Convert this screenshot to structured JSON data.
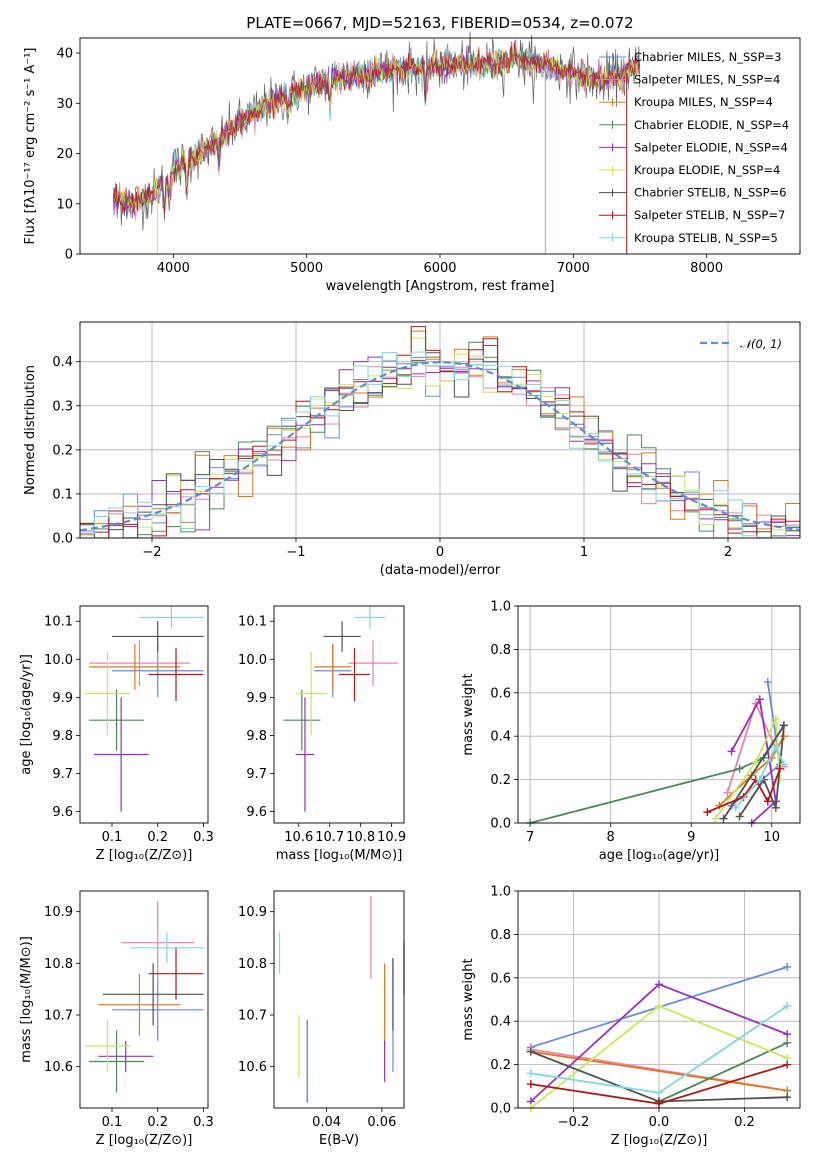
{
  "colors": [
    "#6a8adf",
    "#ee80b0",
    "#e07820",
    "#4a8a5a",
    "#9a30b8",
    "#c8e860",
    "#505050",
    "#b01818",
    "#80d8e0"
  ],
  "chart_data": [
    {
      "id": "spectrum",
      "type": "line",
      "title": "PLATE=0667, MJD=52163, FIBERID=0534, z=0.072",
      "xlabel": "wavelength [Angstrom, rest frame]",
      "ylabel": "Flux [fλ10⁻¹⁷ erg cm⁻² s⁻¹ A⁻¹]",
      "xlim": [
        3300,
        8700
      ],
      "ylim": [
        0,
        43
      ],
      "xticks": [
        4000,
        5000,
        6000,
        7000,
        8000
      ],
      "yticks": [
        0,
        10,
        20,
        30,
        40
      ],
      "grid": false,
      "legend_position": "top-right",
      "series": [
        {
          "name": "Chabrier MILES, N_SSP=3"
        },
        {
          "name": "Salpeter MILES, N_SSP=4"
        },
        {
          "name": "Kroupa MILES, N_SSP=4"
        },
        {
          "name": "Chabrier ELODIE, N_SSP=4"
        },
        {
          "name": "Salpeter ELODIE, N_SSP=4"
        },
        {
          "name": "Kroupa ELODIE, N_SSP=4"
        },
        {
          "name": "Chabrier STELIB, N_SSP=6"
        },
        {
          "name": "Salpeter STELIB, N_SSP=7"
        },
        {
          "name": "Kroupa STELIB, N_SSP=5"
        }
      ],
      "continuum": {
        "x": [
          3550,
          3700,
          3850,
          4000,
          4200,
          4400,
          4600,
          4800,
          5000,
          5200,
          5400,
          5600,
          5800,
          6000,
          6200,
          6400,
          6600,
          6800,
          7000,
          7200,
          7400,
          7500
        ],
        "y": [
          11,
          10,
          12,
          17,
          20,
          24,
          28,
          31,
          33,
          35,
          36,
          36.5,
          37,
          37.5,
          37.5,
          38,
          38.5,
          37.5,
          36,
          34.5,
          36,
          38
        ]
      }
    },
    {
      "id": "residuals",
      "type": "histogram",
      "xlabel": "(data-model)/error",
      "ylabel": "Normed distribution",
      "xlim": [
        -2.5,
        2.5
      ],
      "ylim": [
        0,
        0.49
      ],
      "xticks": [
        -2,
        -1,
        0,
        1,
        2
      ],
      "yticks": [
        0.0,
        0.1,
        0.2,
        0.3,
        0.4
      ],
      "grid": true,
      "legend": "𝒩(0, 1)",
      "legend_position": "top-right",
      "bin_width": 0.1
    },
    {
      "id": "age-Z",
      "type": "errorbar",
      "xlabel": "Z [log₁₀(Z/Z⊙)]",
      "ylabel": "age  [log₁₀(age/yr)]",
      "xlim": [
        0.03,
        0.31
      ],
      "ylim": [
        9.57,
        10.14
      ],
      "xticks": [
        0.1,
        0.2,
        0.3
      ],
      "yticks": [
        9.6,
        9.7,
        9.8,
        9.9,
        10.0,
        10.1
      ],
      "points": [
        {
          "x": 0.2,
          "xerr": 0.1,
          "y": 9.97,
          "yerr": 0.07
        },
        {
          "x": 0.16,
          "xerr": 0.11,
          "y": 9.99,
          "yerr": 0.06
        },
        {
          "x": 0.15,
          "xerr": 0.1,
          "y": 9.98,
          "yerr": 0.06
        },
        {
          "x": 0.11,
          "xerr": 0.06,
          "y": 9.84,
          "yerr": 0.08
        },
        {
          "x": 0.12,
          "xerr": 0.06,
          "y": 9.75,
          "yerr": 0.15
        },
        {
          "x": 0.09,
          "xerr": 0.05,
          "y": 9.91,
          "yerr": 0.11
        },
        {
          "x": 0.2,
          "xerr": 0.1,
          "y": 10.06,
          "yerr": 0.04
        },
        {
          "x": 0.24,
          "xerr": 0.06,
          "y": 9.96,
          "yerr": 0.07
        },
        {
          "x": 0.23,
          "xerr": 0.07,
          "y": 10.11,
          "yerr": 0.03
        }
      ]
    },
    {
      "id": "age-mass",
      "type": "errorbar",
      "xlabel": "mass [log₁₀(M/M⊙)]",
      "xlim": [
        10.52,
        10.94
      ],
      "ylim": [
        9.57,
        10.14
      ],
      "xticks": [
        10.6,
        10.7,
        10.8,
        10.9
      ],
      "yticks": [
        9.6,
        9.7,
        9.8,
        9.9,
        10.0,
        10.1
      ],
      "points": [
        {
          "x": 10.71,
          "xerr": 0.06,
          "y": 9.97,
          "yerr": 0.07
        },
        {
          "x": 10.84,
          "xerr": 0.08,
          "y": 9.99,
          "yerr": 0.06
        },
        {
          "x": 10.71,
          "xerr": 0.06,
          "y": 9.98,
          "yerr": 0.06
        },
        {
          "x": 10.61,
          "xerr": 0.06,
          "y": 9.84,
          "yerr": 0.08
        },
        {
          "x": 10.62,
          "xerr": 0.03,
          "y": 9.75,
          "yerr": 0.15
        },
        {
          "x": 10.64,
          "xerr": 0.05,
          "y": 9.91,
          "yerr": 0.11
        },
        {
          "x": 10.74,
          "xerr": 0.06,
          "y": 10.06,
          "yerr": 0.04
        },
        {
          "x": 10.78,
          "xerr": 0.05,
          "y": 9.96,
          "yerr": 0.07
        },
        {
          "x": 10.83,
          "xerr": 0.05,
          "y": 10.11,
          "yerr": 0.03
        }
      ]
    },
    {
      "id": "weight-age",
      "type": "line",
      "xlabel": "age  [log₁₀(age/yr)]",
      "ylabel": "mass weight",
      "xlim": [
        6.85,
        10.35
      ],
      "ylim": [
        0,
        1
      ],
      "xticks": [
        7,
        8,
        9,
        10
      ],
      "yticks": [
        0.0,
        0.2,
        0.4,
        0.6,
        0.8,
        1.0
      ],
      "grid": true,
      "series": [
        {
          "x": [
            9.95,
            10.1,
            9.5
          ],
          "y": [
            0.65,
            0.27,
            0.08
          ]
        },
        {
          "x": [
            9.45,
            9.8,
            10.15
          ],
          "y": [
            0.14,
            0.55,
            0.26
          ]
        },
        {
          "x": [
            9.35,
            9.75,
            10.0,
            10.15
          ],
          "y": [
            0.08,
            0.22,
            0.3,
            0.4
          ]
        },
        {
          "x": [
            7.0,
            9.6,
            9.9,
            10.15
          ],
          "y": [
            0.0,
            0.25,
            0.3,
            0.45
          ]
        },
        {
          "x": [
            9.5,
            9.85,
            10.05,
            9.75
          ],
          "y": [
            0.33,
            0.57,
            0.1,
            0.0
          ]
        },
        {
          "x": [
            9.3,
            9.8,
            10.05,
            10.1
          ],
          "y": [
            0.02,
            0.28,
            0.48,
            0.2
          ]
        },
        {
          "x": [
            9.6,
            9.9,
            10.05,
            10.15,
            9.4
          ],
          "y": [
            0.03,
            0.2,
            0.07,
            0.45,
            0.02
          ]
        },
        {
          "x": [
            9.2,
            9.65,
            9.8,
            9.95,
            10.1
          ],
          "y": [
            0.05,
            0.12,
            0.2,
            0.1,
            0.25
          ]
        },
        {
          "x": [
            9.55,
            9.85,
            10.05,
            10.15
          ],
          "y": [
            0.07,
            0.2,
            0.35,
            0.27
          ]
        }
      ]
    },
    {
      "id": "mass-Z",
      "type": "errorbar",
      "xlabel": "Z [log₁₀(Z/Z⊙)]",
      "ylabel": "mass [log₁₀(M/M⊙)]",
      "xlim": [
        0.03,
        0.31
      ],
      "ylim": [
        10.52,
        10.94
      ],
      "xticks": [
        0.1,
        0.2,
        0.3
      ],
      "yticks": [
        10.6,
        10.7,
        10.8,
        10.9
      ],
      "points": [
        {
          "x": 0.2,
          "xerr": 0.1,
          "y": 10.71,
          "yerr": 0.06
        },
        {
          "x": 0.2,
          "xerr": 0.08,
          "y": 10.84,
          "yerr": 0.08
        },
        {
          "x": 0.16,
          "xerr": 0.09,
          "y": 10.72,
          "yerr": 0.06
        },
        {
          "x": 0.11,
          "xerr": 0.06,
          "y": 10.61,
          "yerr": 0.06
        },
        {
          "x": 0.13,
          "xerr": 0.06,
          "y": 10.62,
          "yerr": 0.03
        },
        {
          "x": 0.09,
          "xerr": 0.05,
          "y": 10.64,
          "yerr": 0.05
        },
        {
          "x": 0.19,
          "xerr": 0.11,
          "y": 10.74,
          "yerr": 0.06
        },
        {
          "x": 0.24,
          "xerr": 0.06,
          "y": 10.78,
          "yerr": 0.05
        },
        {
          "x": 0.22,
          "xerr": 0.08,
          "y": 10.83,
          "yerr": 0.03
        }
      ]
    },
    {
      "id": "mass-EBV",
      "type": "errorbar",
      "xlabel": "E(B-V)",
      "xlim": [
        0.021,
        0.068
      ],
      "ylim": [
        10.52,
        10.94
      ],
      "xticks": [
        0.04,
        0.06
      ],
      "yticks": [
        10.6,
        10.7,
        10.8,
        10.9
      ],
      "points": [
        {
          "x": 0.064,
          "y": 10.7,
          "yerr": 0.11
        },
        {
          "x": 0.056,
          "y": 10.85,
          "yerr": 0.08
        },
        {
          "x": 0.061,
          "y": 10.72,
          "yerr": 0.08
        },
        {
          "x": 0.033,
          "y": 10.61,
          "yerr": 0.08
        },
        {
          "x": 0.061,
          "y": 10.61,
          "yerr": 0.04
        },
        {
          "x": 0.03,
          "y": 10.64,
          "yerr": 0.06
        },
        {
          "x": 0.064,
          "y": 10.74,
          "yerr": 0.07
        },
        {
          "x": 0.068,
          "y": 10.79,
          "yerr": 0.05
        },
        {
          "x": 0.023,
          "y": 10.82,
          "yerr": 0.04
        }
      ]
    },
    {
      "id": "weight-Z",
      "type": "line",
      "xlabel": "Z [log₁₀(Z/Z⊙)]",
      "ylabel": "mass weight",
      "xlim": [
        -0.33,
        0.33
      ],
      "ylim": [
        0,
        1
      ],
      "xticks": [
        -0.2,
        0.0,
        0.2
      ],
      "yticks": [
        0.0,
        0.2,
        0.4,
        0.6,
        0.8,
        1.0
      ],
      "grid": true,
      "series": [
        {
          "x": [
            -0.3,
            0.3
          ],
          "y": [
            0.28,
            0.65
          ]
        },
        {
          "x": [
            -0.3,
            0.3
          ],
          "y": [
            0.27,
            0.08
          ]
        },
        {
          "x": [
            -0.3,
            0.3
          ],
          "y": [
            0.26,
            0.08
          ]
        },
        {
          "x": [
            0.0,
            0.3
          ],
          "y": [
            0.03,
            0.3
          ]
        },
        {
          "x": [
            -0.3,
            0.0,
            0.3
          ],
          "y": [
            0.03,
            0.57,
            0.34
          ]
        },
        {
          "x": [
            -0.3,
            0.0,
            0.3
          ],
          "y": [
            0.0,
            0.47,
            0.23
          ]
        },
        {
          "x": [
            -0.3,
            0.0,
            0.3
          ],
          "y": [
            0.26,
            0.03,
            0.05
          ]
        },
        {
          "x": [
            -0.3,
            0.0,
            0.3
          ],
          "y": [
            0.11,
            0.02,
            0.2
          ]
        },
        {
          "x": [
            -0.3,
            0.0,
            0.3
          ],
          "y": [
            0.16,
            0.07,
            0.47
          ]
        }
      ]
    }
  ]
}
